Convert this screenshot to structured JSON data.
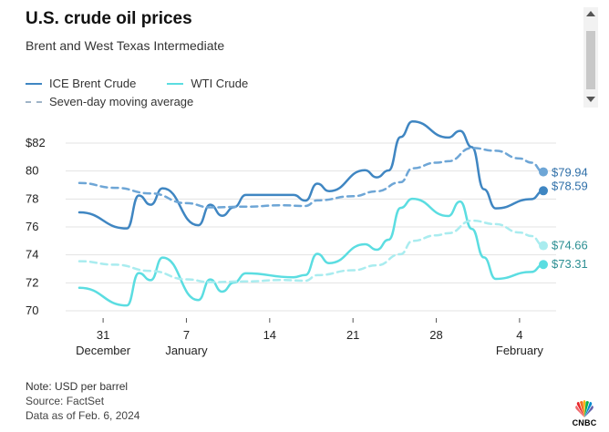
{
  "title": "U.S. crude oil prices",
  "subtitle": "Brent and West Texas Intermediate",
  "legend": [
    {
      "label": "ICE Brent Crude",
      "color": "#3f86c2",
      "style": "solid"
    },
    {
      "label": "WTI Crude",
      "color": "#5bdde1",
      "style": "solid"
    },
    {
      "label": "Seven-day moving average",
      "color": "#9fb4c8",
      "style": "dashed"
    }
  ],
  "footer": {
    "note": "Note: USD per barrel",
    "source": "Source: FactSet",
    "asof": "Data as of Feb. 6, 2024"
  },
  "logo_text": "CNBC",
  "chart_data": {
    "type": "line",
    "title": "U.S. crude oil prices",
    "subtitle": "Brent and West Texas Intermediate",
    "ylim": [
      70,
      82
    ],
    "yticks": [
      70,
      72,
      74,
      76,
      78,
      80,
      82
    ],
    "ytick_labels": [
      "70",
      "72",
      "74",
      "76",
      "78",
      "80",
      "$82"
    ],
    "xlim": [
      "2023-12-29",
      "2024-02-06"
    ],
    "xticks": [
      {
        "date": "2023-12-31",
        "label": "31",
        "sublabel": "December"
      },
      {
        "date": "2024-01-07",
        "label": "7",
        "sublabel": "January"
      },
      {
        "date": "2024-01-14",
        "label": "14",
        "sublabel": ""
      },
      {
        "date": "2024-01-21",
        "label": "21",
        "sublabel": ""
      },
      {
        "date": "2024-01-28",
        "label": "28",
        "sublabel": ""
      },
      {
        "date": "2024-02-04",
        "label": "4",
        "sublabel": "February"
      }
    ],
    "grid": true,
    "legend_position": "top-left",
    "series": [
      {
        "name": "ICE Brent Crude",
        "color": "#3f86c2",
        "style": "solid",
        "end_label": "$78.59",
        "points": [
          [
            "2023-12-29",
            77.04
          ],
          [
            "2024-01-02",
            75.89
          ],
          [
            "2024-01-03",
            78.25
          ],
          [
            "2024-01-04",
            77.59
          ],
          [
            "2024-01-05",
            78.76
          ],
          [
            "2024-01-08",
            76.12
          ],
          [
            "2024-01-09",
            77.59
          ],
          [
            "2024-01-10",
            76.8
          ],
          [
            "2024-01-11",
            77.41
          ],
          [
            "2024-01-12",
            78.29
          ],
          [
            "2024-01-16",
            78.29
          ],
          [
            "2024-01-17",
            77.88
          ],
          [
            "2024-01-18",
            79.1
          ],
          [
            "2024-01-19",
            78.56
          ],
          [
            "2024-01-22",
            80.06
          ],
          [
            "2024-01-23",
            79.55
          ],
          [
            "2024-01-24",
            80.04
          ],
          [
            "2024-01-25",
            82.43
          ],
          [
            "2024-01-26",
            83.55
          ],
          [
            "2024-01-29",
            82.4
          ],
          [
            "2024-01-30",
            82.87
          ],
          [
            "2024-01-31",
            81.71
          ],
          [
            "2024-02-01",
            78.7
          ],
          [
            "2024-02-02",
            77.33
          ],
          [
            "2024-02-05",
            77.99
          ],
          [
            "2024-02-06",
            78.59
          ]
        ]
      },
      {
        "name": "WTI Crude",
        "color": "#5bdde1",
        "style": "solid",
        "end_label": "$73.31",
        "points": [
          [
            "2023-12-29",
            71.65
          ],
          [
            "2024-01-02",
            70.38
          ],
          [
            "2024-01-03",
            72.7
          ],
          [
            "2024-01-04",
            72.19
          ],
          [
            "2024-01-05",
            73.81
          ],
          [
            "2024-01-08",
            70.77
          ],
          [
            "2024-01-09",
            72.24
          ],
          [
            "2024-01-10",
            71.37
          ],
          [
            "2024-01-11",
            72.02
          ],
          [
            "2024-01-12",
            72.68
          ],
          [
            "2024-01-16",
            72.4
          ],
          [
            "2024-01-17",
            72.56
          ],
          [
            "2024-01-18",
            74.08
          ],
          [
            "2024-01-19",
            73.41
          ],
          [
            "2024-01-22",
            74.76
          ],
          [
            "2024-01-23",
            74.37
          ],
          [
            "2024-01-24",
            75.09
          ],
          [
            "2024-01-25",
            77.36
          ],
          [
            "2024-01-26",
            78.01
          ],
          [
            "2024-01-29",
            76.78
          ],
          [
            "2024-01-30",
            77.82
          ],
          [
            "2024-01-31",
            75.85
          ],
          [
            "2024-02-01",
            73.82
          ],
          [
            "2024-02-02",
            72.28
          ],
          [
            "2024-02-05",
            72.78
          ],
          [
            "2024-02-06",
            73.31
          ]
        ]
      },
      {
        "name": "Seven-day moving average",
        "color": "#6ea6d6",
        "style": "dashed",
        "end_label": "$79.94",
        "points": [
          [
            "2023-12-29",
            79.15
          ],
          [
            "2024-01-01",
            78.8
          ],
          [
            "2024-01-04",
            78.4
          ],
          [
            "2024-01-07",
            77.7
          ],
          [
            "2024-01-09",
            77.4
          ],
          [
            "2024-01-12",
            77.45
          ],
          [
            "2024-01-15",
            77.55
          ],
          [
            "2024-01-17",
            77.5
          ],
          [
            "2024-01-18",
            77.9
          ],
          [
            "2024-01-21",
            78.2
          ],
          [
            "2024-01-23",
            78.55
          ],
          [
            "2024-01-25",
            79.2
          ],
          [
            "2024-01-26",
            80.2
          ],
          [
            "2024-01-28",
            80.6
          ],
          [
            "2024-01-29",
            80.7
          ],
          [
            "2024-01-31",
            81.65
          ],
          [
            "2024-02-02",
            81.45
          ],
          [
            "2024-02-04",
            80.9
          ],
          [
            "2024-02-05",
            80.6
          ],
          [
            "2024-02-06",
            79.94
          ]
        ]
      },
      {
        "name": "Seven-day moving average",
        "color": "#a9ecef",
        "style": "dashed",
        "end_label": "$74.66",
        "points": [
          [
            "2023-12-29",
            73.55
          ],
          [
            "2024-01-01",
            73.3
          ],
          [
            "2024-01-04",
            72.85
          ],
          [
            "2024-01-07",
            72.25
          ],
          [
            "2024-01-09",
            72.05
          ],
          [
            "2024-01-12",
            72.1
          ],
          [
            "2024-01-15",
            72.2
          ],
          [
            "2024-01-17",
            72.15
          ],
          [
            "2024-01-18",
            72.55
          ],
          [
            "2024-01-21",
            72.9
          ],
          [
            "2024-01-23",
            73.25
          ],
          [
            "2024-01-25",
            74.05
          ],
          [
            "2024-01-26",
            75.0
          ],
          [
            "2024-01-28",
            75.4
          ],
          [
            "2024-01-29",
            75.55
          ],
          [
            "2024-01-31",
            76.45
          ],
          [
            "2024-02-02",
            76.2
          ],
          [
            "2024-02-04",
            75.6
          ],
          [
            "2024-02-05",
            75.35
          ],
          [
            "2024-02-06",
            74.66
          ]
        ]
      }
    ]
  }
}
